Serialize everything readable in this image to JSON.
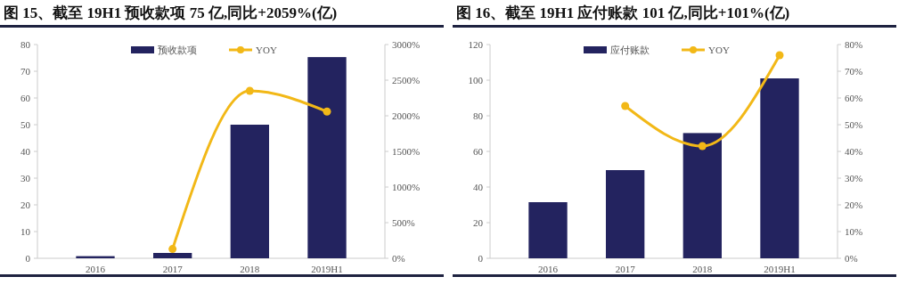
{
  "chart_data": [
    {
      "type": "bar",
      "title": "图 15、截至 19H1 预收款项 75 亿,同比+2059%(亿)",
      "categories": [
        "2016",
        "2017",
        "2018",
        "2019H1"
      ],
      "series": [
        {
          "name": "预收款项",
          "color": "#23235f",
          "values": [
            0.8,
            2.0,
            50,
            75.3
          ]
        },
        {
          "name": "YOY",
          "type": "line",
          "axis": "y2",
          "color": "#f2b817",
          "values": [
            null,
            130,
            2350,
            2059
          ]
        }
      ],
      "ylim": [
        0,
        80
      ],
      "yticks": [
        0,
        10,
        20,
        30,
        40,
        50,
        60,
        70,
        80
      ],
      "y2lim": [
        0,
        3000
      ],
      "y2ticks": [
        {
          "value": 0,
          "label": "0%"
        },
        {
          "value": 500,
          "label": "500%"
        },
        {
          "value": 1000,
          "label": "1000%"
        },
        {
          "value": 1500,
          "label": "1500%"
        },
        {
          "value": 2000,
          "label": "2000%"
        },
        {
          "value": 2500,
          "label": "2500%"
        },
        {
          "value": 3000,
          "label": "3000%"
        }
      ],
      "legend": "top",
      "marker": "circle",
      "line_style": "solid"
    },
    {
      "type": "bar",
      "title": "图 16、截至 19H1 应付账款 101 亿,同比+101%(亿)",
      "categories": [
        "2016",
        "2017",
        "2018",
        "2019H1"
      ],
      "series": [
        {
          "name": "应付账款",
          "color": "#23235f",
          "values": [
            31.5,
            49.5,
            70.3,
            101
          ]
        },
        {
          "name": "YOY",
          "type": "line",
          "axis": "y2",
          "color": "#f2b817",
          "values": [
            null,
            57,
            42,
            76
          ]
        }
      ],
      "ylim": [
        0,
        120
      ],
      "yticks": [
        0,
        20,
        40,
        60,
        80,
        100,
        120
      ],
      "y2lim": [
        0,
        80
      ],
      "y2ticks": [
        {
          "value": 0,
          "label": "0%"
        },
        {
          "value": 10,
          "label": "10%"
        },
        {
          "value": 20,
          "label": "20%"
        },
        {
          "value": 30,
          "label": "30%"
        },
        {
          "value": 40,
          "label": "40%"
        },
        {
          "value": 50,
          "label": "50%"
        },
        {
          "value": 60,
          "label": "60%"
        },
        {
          "value": 70,
          "label": "70%"
        },
        {
          "value": 80,
          "label": "80%"
        }
      ],
      "legend": "top",
      "marker": "circle",
      "line_style": "solid"
    }
  ]
}
